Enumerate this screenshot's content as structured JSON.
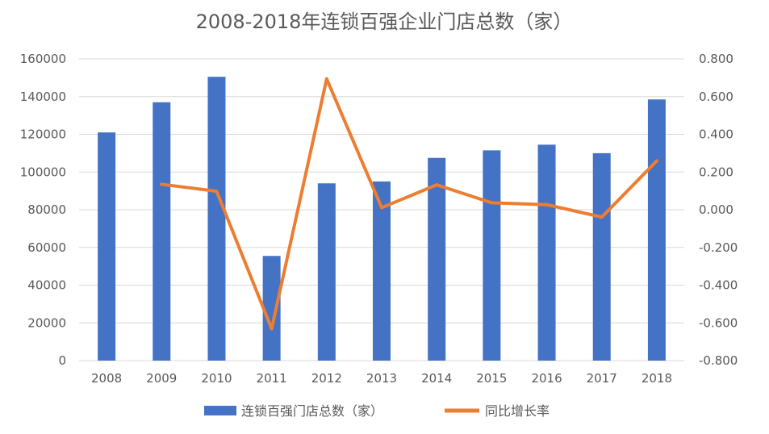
{
  "chart_data": {
    "type": "bar",
    "title": "2008-2018年连锁百强企业门店总数（家）",
    "categories": [
      "2008",
      "2009",
      "2010",
      "2011",
      "2012",
      "2013",
      "2014",
      "2015",
      "2016",
      "2017",
      "2018"
    ],
    "series": [
      {
        "name": "连锁百强门店总数（家）",
        "type": "bar",
        "axis": "left",
        "color": "#4472c4",
        "values": [
          121000,
          137000,
          150500,
          55500,
          94000,
          95000,
          107500,
          111500,
          114500,
          110000,
          138500
        ]
      },
      {
        "name": "同比增长率",
        "type": "line",
        "axis": "right",
        "color": "#ed7d31",
        "values": [
          null,
          0.135,
          0.098,
          -0.631,
          0.694,
          0.011,
          0.132,
          0.037,
          0.027,
          -0.039,
          0.259
        ]
      }
    ],
    "y_left": {
      "ylim": [
        0,
        160000
      ],
      "ticks": [
        "0",
        "20000",
        "40000",
        "60000",
        "80000",
        "100000",
        "120000",
        "140000",
        "160000"
      ]
    },
    "y_right": {
      "ylim": [
        -0.8,
        0.8
      ],
      "ticks": [
        "-0.800",
        "-0.600",
        "-0.400",
        "-0.200",
        "0.000",
        "0.200",
        "0.400",
        "0.600",
        "0.800"
      ]
    },
    "grid": true,
    "legend_position": "bottom"
  }
}
